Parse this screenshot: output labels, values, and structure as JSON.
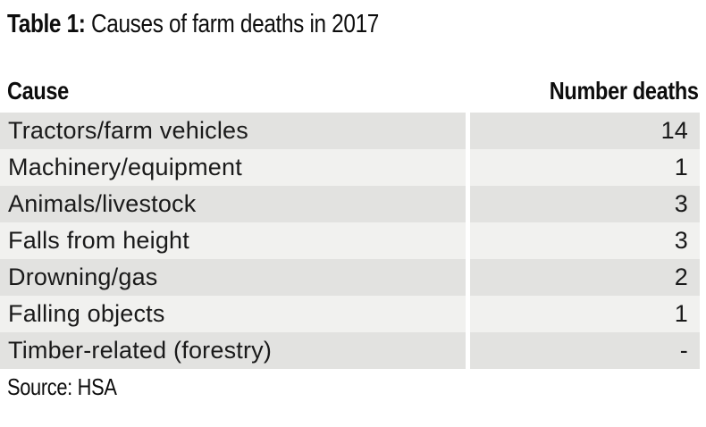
{
  "colors": {
    "background": "#ffffff",
    "row-dark": "#e2e2e0",
    "row-light": "#f1f1ef",
    "text": "#141414"
  },
  "title": {
    "prefix": "Table 1:",
    "text": "Causes of farm deaths in 2017"
  },
  "source": "Source: HSA",
  "chart_data": {
    "type": "table",
    "title": "Table 1: Causes of farm deaths in 2017",
    "columns": [
      "Cause",
      "Number deaths"
    ],
    "rows": [
      [
        "Tractors/farm vehicles",
        14
      ],
      [
        "Machinery/equipment",
        1
      ],
      [
        "Animals/livestock",
        3
      ],
      [
        "Falls from height",
        3
      ],
      [
        "Drowning/gas",
        2
      ],
      [
        "Falling objects",
        1
      ],
      [
        "Timber-related (forestry)",
        "-"
      ]
    ],
    "source": "Source: HSA",
    "layout": {
      "row_striping": "odd rows darker gray, even rows lighter gray",
      "value_alignment": "right",
      "column_gutter": "white vertical gap between the two columns"
    }
  }
}
